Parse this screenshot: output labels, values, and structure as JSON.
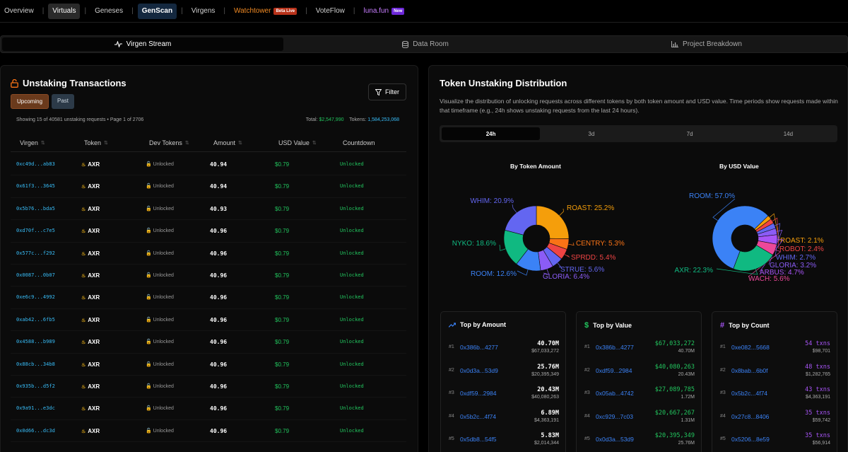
{
  "nav": {
    "items": [
      {
        "label": "Overview"
      },
      {
        "label": "Virtuals"
      },
      {
        "label": "Geneses"
      },
      {
        "label": "GenScan"
      },
      {
        "label": "Virgens"
      },
      {
        "label": "Watchtower",
        "badge": "Beta Live"
      },
      {
        "label": "VoteFlow"
      },
      {
        "label": "luna.fun",
        "badge": "New"
      }
    ]
  },
  "tabs": [
    {
      "label": "Virgen Stream",
      "icon": "activity-icon"
    },
    {
      "label": "Data Room",
      "icon": "database-icon"
    },
    {
      "label": "Project Breakdown",
      "icon": "bar-chart-icon"
    }
  ],
  "left": {
    "title": "Unstaking Transactions",
    "upcoming": "Upcoming",
    "past": "Past",
    "filter": "Filter",
    "showing": "Showing 15 of 40581 unstaking requests • Page 1 of 2706",
    "total_label": "Total:",
    "total_value": "$2,547,990",
    "tokens_label": "Tokens:",
    "tokens_value": "1,584,253,068",
    "columns": [
      "Virgen",
      "Token",
      "Dev Tokens",
      "Amount",
      "USD Value",
      "Countdown"
    ],
    "rows": [
      {
        "addr": "0xc49d...ab83",
        "token": "AXR",
        "dev": "Unlocked",
        "amount": "40.94",
        "usd": "$0.79",
        "countdown": "Unlocked"
      },
      {
        "addr": "0x61f3...3645",
        "token": "AXR",
        "dev": "Unlocked",
        "amount": "40.94",
        "usd": "$0.79",
        "countdown": "Unlocked"
      },
      {
        "addr": "0x5b76...bda5",
        "token": "AXR",
        "dev": "Unlocked",
        "amount": "40.93",
        "usd": "$0.79",
        "countdown": "Unlocked"
      },
      {
        "addr": "0xd70f...c7e5",
        "token": "AXR",
        "dev": "Unlocked",
        "amount": "40.96",
        "usd": "$0.79",
        "countdown": "Unlocked"
      },
      {
        "addr": "0x577c...f292",
        "token": "AXR",
        "dev": "Unlocked",
        "amount": "40.96",
        "usd": "$0.79",
        "countdown": "Unlocked"
      },
      {
        "addr": "0x0087...0b07",
        "token": "AXR",
        "dev": "Unlocked",
        "amount": "40.96",
        "usd": "$0.79",
        "countdown": "Unlocked"
      },
      {
        "addr": "0xe6c9...4992",
        "token": "AXR",
        "dev": "Unlocked",
        "amount": "40.96",
        "usd": "$0.79",
        "countdown": "Unlocked"
      },
      {
        "addr": "0xab42...6fb5",
        "token": "AXR",
        "dev": "Unlocked",
        "amount": "40.96",
        "usd": "$0.79",
        "countdown": "Unlocked"
      },
      {
        "addr": "0x4588...b989",
        "token": "AXR",
        "dev": "Unlocked",
        "amount": "40.96",
        "usd": "$0.79",
        "countdown": "Unlocked"
      },
      {
        "addr": "0x88cb...34b8",
        "token": "AXR",
        "dev": "Unlocked",
        "amount": "40.96",
        "usd": "$0.79",
        "countdown": "Unlocked"
      },
      {
        "addr": "0x935b...d5f2",
        "token": "AXR",
        "dev": "Unlocked",
        "amount": "40.96",
        "usd": "$0.79",
        "countdown": "Unlocked"
      },
      {
        "addr": "0x9a91...e3dc",
        "token": "AXR",
        "dev": "Unlocked",
        "amount": "40.96",
        "usd": "$0.79",
        "countdown": "Unlocked"
      },
      {
        "addr": "0x0d66...dc3d",
        "token": "AXR",
        "dev": "Unlocked",
        "amount": "40.96",
        "usd": "$0.79",
        "countdown": "Unlocked"
      }
    ]
  },
  "right": {
    "title": "Token Unstaking Distribution",
    "description": "Visualize the distribution of unlocking requests across different tokens by both token amount and USD value. Time periods show requests made within that timeframe (e.g., 24h shows unstaking requests from the last 24 hours).",
    "periods": [
      "24h",
      "3d",
      "7d",
      "14d"
    ],
    "active_period": "24h",
    "top_amount": {
      "title": "Top by Amount",
      "rows": [
        {
          "rank": "#1",
          "addr": "0x386b...4277",
          "v1": "40.70M",
          "v2": "$67,033,272"
        },
        {
          "rank": "#2",
          "addr": "0x0d3a...53d9",
          "v1": "25.76M",
          "v2": "$20,395,349"
        },
        {
          "rank": "#3",
          "addr": "0xdf59...2984",
          "v1": "20.43M",
          "v2": "$40,080,263"
        },
        {
          "rank": "#4",
          "addr": "0x5b2c...4f74",
          "v1": "6.89M",
          "v2": "$4,363,191"
        },
        {
          "rank": "#5",
          "addr": "0x5db8...54f5",
          "v1": "5.83M",
          "v2": "$2,014,344"
        }
      ]
    },
    "top_value": {
      "title": "Top by Value",
      "rows": [
        {
          "rank": "#1",
          "addr": "0x386b...4277",
          "v1": "$67,033,272",
          "v2": "40.70M"
        },
        {
          "rank": "#2",
          "addr": "0xdf59...2984",
          "v1": "$40,080,263",
          "v2": "20.43M"
        },
        {
          "rank": "#3",
          "addr": "0x05ab...4742",
          "v1": "$27,089,785",
          "v2": "1.72M"
        },
        {
          "rank": "#4",
          "addr": "0xc929...7c03",
          "v1": "$20,667,267",
          "v2": "1.31M"
        },
        {
          "rank": "#5",
          "addr": "0x0d3a...53d9",
          "v1": "$20,395,349",
          "v2": "25.76M"
        }
      ]
    },
    "top_count": {
      "title": "Top by Count",
      "rows": [
        {
          "rank": "#1",
          "addr": "0xe082...5668",
          "v1": "54 txns",
          "v2": "$98,701"
        },
        {
          "rank": "#2",
          "addr": "0x8bab...6b0f",
          "v1": "48 txns",
          "v2": "$1,282,765"
        },
        {
          "rank": "#3",
          "addr": "0x5b2c...4f74",
          "v1": "43 txns",
          "v2": "$4,363,191"
        },
        {
          "rank": "#4",
          "addr": "0x27c8...8406",
          "v1": "35 txns",
          "v2": "$59,742"
        },
        {
          "rank": "#5",
          "addr": "0x5206...8e59",
          "v1": "35 txns",
          "v2": "$56,914"
        }
      ]
    }
  },
  "chart_data": [
    {
      "type": "pie",
      "title": "By Token Amount",
      "donut": true,
      "slices": [
        {
          "label": "ROAST",
          "value": 25.2,
          "color": "#f59e0b"
        },
        {
          "label": "CENTRY",
          "value": 5.3,
          "color": "#f97316"
        },
        {
          "label": "SPRDD",
          "value": 5.4,
          "color": "#ef4444"
        },
        {
          "label": "STRUE",
          "value": 5.6,
          "color": "#6366f1"
        },
        {
          "label": "GLORIA",
          "value": 6.4,
          "color": "#8b5cf6"
        },
        {
          "label": "ROOM",
          "value": 12.6,
          "color": "#3b82f6"
        },
        {
          "label": "NYKO",
          "value": 18.6,
          "color": "#10b981"
        },
        {
          "label": "WHIM",
          "value": 20.9,
          "color": "#6366f1"
        }
      ]
    },
    {
      "type": "pie",
      "title": "By USD Value",
      "donut": true,
      "slices": [
        {
          "label": "ROAST",
          "value": 2.1,
          "color": "#f59e0b"
        },
        {
          "label": "ROBOT",
          "value": 2.4,
          "color": "#ef4444"
        },
        {
          "label": "WHIM",
          "value": 2.7,
          "color": "#6366f1"
        },
        {
          "label": "GLORIA",
          "value": 3.2,
          "color": "#8b5cf6"
        },
        {
          "label": "ARBUS",
          "value": 4.7,
          "color": "#a855f7"
        },
        {
          "label": "WACH",
          "value": 5.6,
          "color": "#ec4899"
        },
        {
          "label": "AXR",
          "value": 22.3,
          "color": "#10b981"
        },
        {
          "label": "ROOM",
          "value": 57.0,
          "color": "#3b82f6"
        }
      ]
    }
  ]
}
